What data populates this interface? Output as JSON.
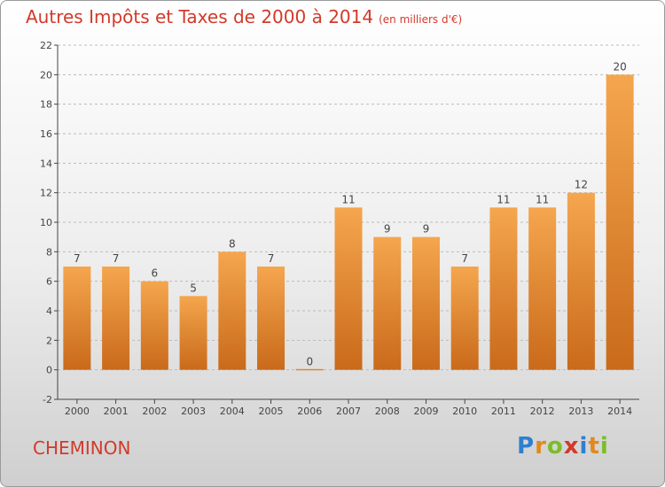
{
  "header": {
    "title": "Autres Impôts et Taxes de 2000 à 2014",
    "unit": "(en milliers d'€)"
  },
  "footer": {
    "town": "CHEMINON",
    "logo_letters": [
      {
        "ch": "P",
        "color": "#2f7fd0"
      },
      {
        "ch": "r",
        "color": "#e08a1e"
      },
      {
        "ch": "o",
        "color": "#7bbd2a"
      },
      {
        "ch": "x",
        "color": "#d23a2a"
      },
      {
        "ch": "i",
        "color": "#2f7fd0"
      },
      {
        "ch": "t",
        "color": "#e08a1e"
      },
      {
        "ch": "i",
        "color": "#7bbd2a"
      }
    ]
  },
  "chart_data": {
    "type": "bar",
    "title": "Autres Impôts et Taxes de 2000 à 2014",
    "categories": [
      "2000",
      "2001",
      "2002",
      "2003",
      "2004",
      "2005",
      "2006",
      "2007",
      "2008",
      "2009",
      "2010",
      "2011",
      "2012",
      "2013",
      "2014"
    ],
    "values": [
      7,
      7,
      6,
      5,
      8,
      7,
      0,
      11,
      9,
      9,
      7,
      11,
      11,
      12,
      20
    ],
    "ylim": [
      -2,
      22
    ],
    "yticks": [
      -2,
      0,
      2,
      4,
      6,
      8,
      10,
      12,
      14,
      16,
      18,
      20,
      22
    ],
    "grid": "y-dashed",
    "colors": {
      "bar_light": "#f5a64e",
      "bar_dark": "#c96a1a",
      "grid": "#bbbbbb",
      "axis": "#444444",
      "label": "#444444"
    }
  }
}
